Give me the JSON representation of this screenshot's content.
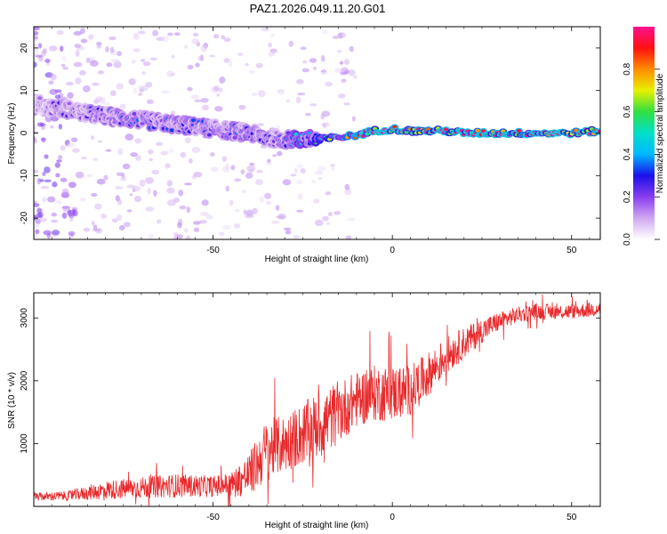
{
  "title": "PAZ1.2026.049.11.20.G01",
  "colors": {
    "snr_line": "#e8292b",
    "colorbar": [
      "#ffffff",
      "#cfa8f0",
      "#8a3cf0",
      "#1a10e8",
      "#00b8ff",
      "#00e0c8",
      "#30e040",
      "#e8f000",
      "#ff8c00",
      "#ff1010",
      "#ff1090"
    ]
  },
  "chart_data": [
    {
      "type": "heatmap",
      "title": "PAZ1.2026.049.11.20.G01",
      "xlabel": "Height of straight line (km)",
      "ylabel": "Frequency (Hz)",
      "xlim": [
        -100,
        58
      ],
      "ylim": [
        -25,
        25
      ],
      "xticks": [
        -50,
        0,
        50
      ],
      "yticks": [
        -20,
        -10,
        0,
        10,
        20
      ],
      "colorbar": {
        "label": "Normalized spectral amplitude",
        "range": [
          0,
          1
        ],
        "ticks": [
          0.0,
          0.2,
          0.4,
          0.6,
          0.8
        ]
      },
      "ridge": {
        "x": [
          -100,
          -95,
          -90,
          -85,
          -80,
          -75,
          -70,
          -65,
          -60,
          -55,
          -50,
          -45,
          -40,
          -35,
          -30,
          -25,
          -20,
          -15,
          -10,
          -5,
          0,
          5,
          10,
          15,
          20,
          30,
          40,
          50,
          58
        ],
        "freq": [
          7,
          6,
          5.5,
          4.5,
          4,
          3.5,
          3,
          2.5,
          2,
          1.5,
          1,
          0.5,
          0,
          -1,
          -1.5,
          -1.5,
          -1.5,
          -1,
          -0.5,
          0.5,
          1,
          0.5,
          0.5,
          0.5,
          0,
          0,
          0,
          0,
          0.5
        ],
        "amp": [
          0.1,
          0.18,
          0.2,
          0.22,
          0.24,
          0.25,
          0.25,
          0.26,
          0.25,
          0.24,
          0.25,
          0.26,
          0.25,
          0.25,
          0.28,
          0.4,
          0.5,
          0.6,
          0.75,
          0.85,
          0.9,
          0.95,
          0.95,
          0.95,
          0.95,
          0.9,
          0.9,
          0.9,
          0.9
        ]
      }
    },
    {
      "type": "line",
      "xlabel": "Height of straight line (km)",
      "ylabel": "SNR (10 * v/v)",
      "xlim": [
        -100,
        58
      ],
      "ylim": [
        0,
        3400
      ],
      "xticks": [
        -50,
        0,
        50
      ],
      "yticks": [
        1000,
        2000,
        3000
      ],
      "series": [
        {
          "name": "SNR",
          "x": [
            -100,
            -90,
            -80,
            -70,
            -60,
            -50,
            -45,
            -40,
            -35,
            -30,
            -25,
            -20,
            -15,
            -10,
            -5,
            0,
            5,
            10,
            15,
            20,
            25,
            30,
            35,
            40,
            45,
            50,
            58
          ],
          "value": [
            150,
            170,
            260,
            300,
            330,
            320,
            350,
            500,
            900,
            1000,
            1150,
            1300,
            1500,
            1700,
            1800,
            1800,
            1850,
            2100,
            2400,
            2600,
            2800,
            2950,
            3050,
            3100,
            3100,
            3100,
            3150
          ],
          "noise": [
            60,
            80,
            150,
            170,
            190,
            170,
            200,
            350,
            500,
            450,
            500,
            550,
            500,
            450,
            450,
            450,
            400,
            350,
            300,
            250,
            200,
            150,
            130,
            130,
            120,
            120,
            120
          ]
        }
      ]
    }
  ]
}
